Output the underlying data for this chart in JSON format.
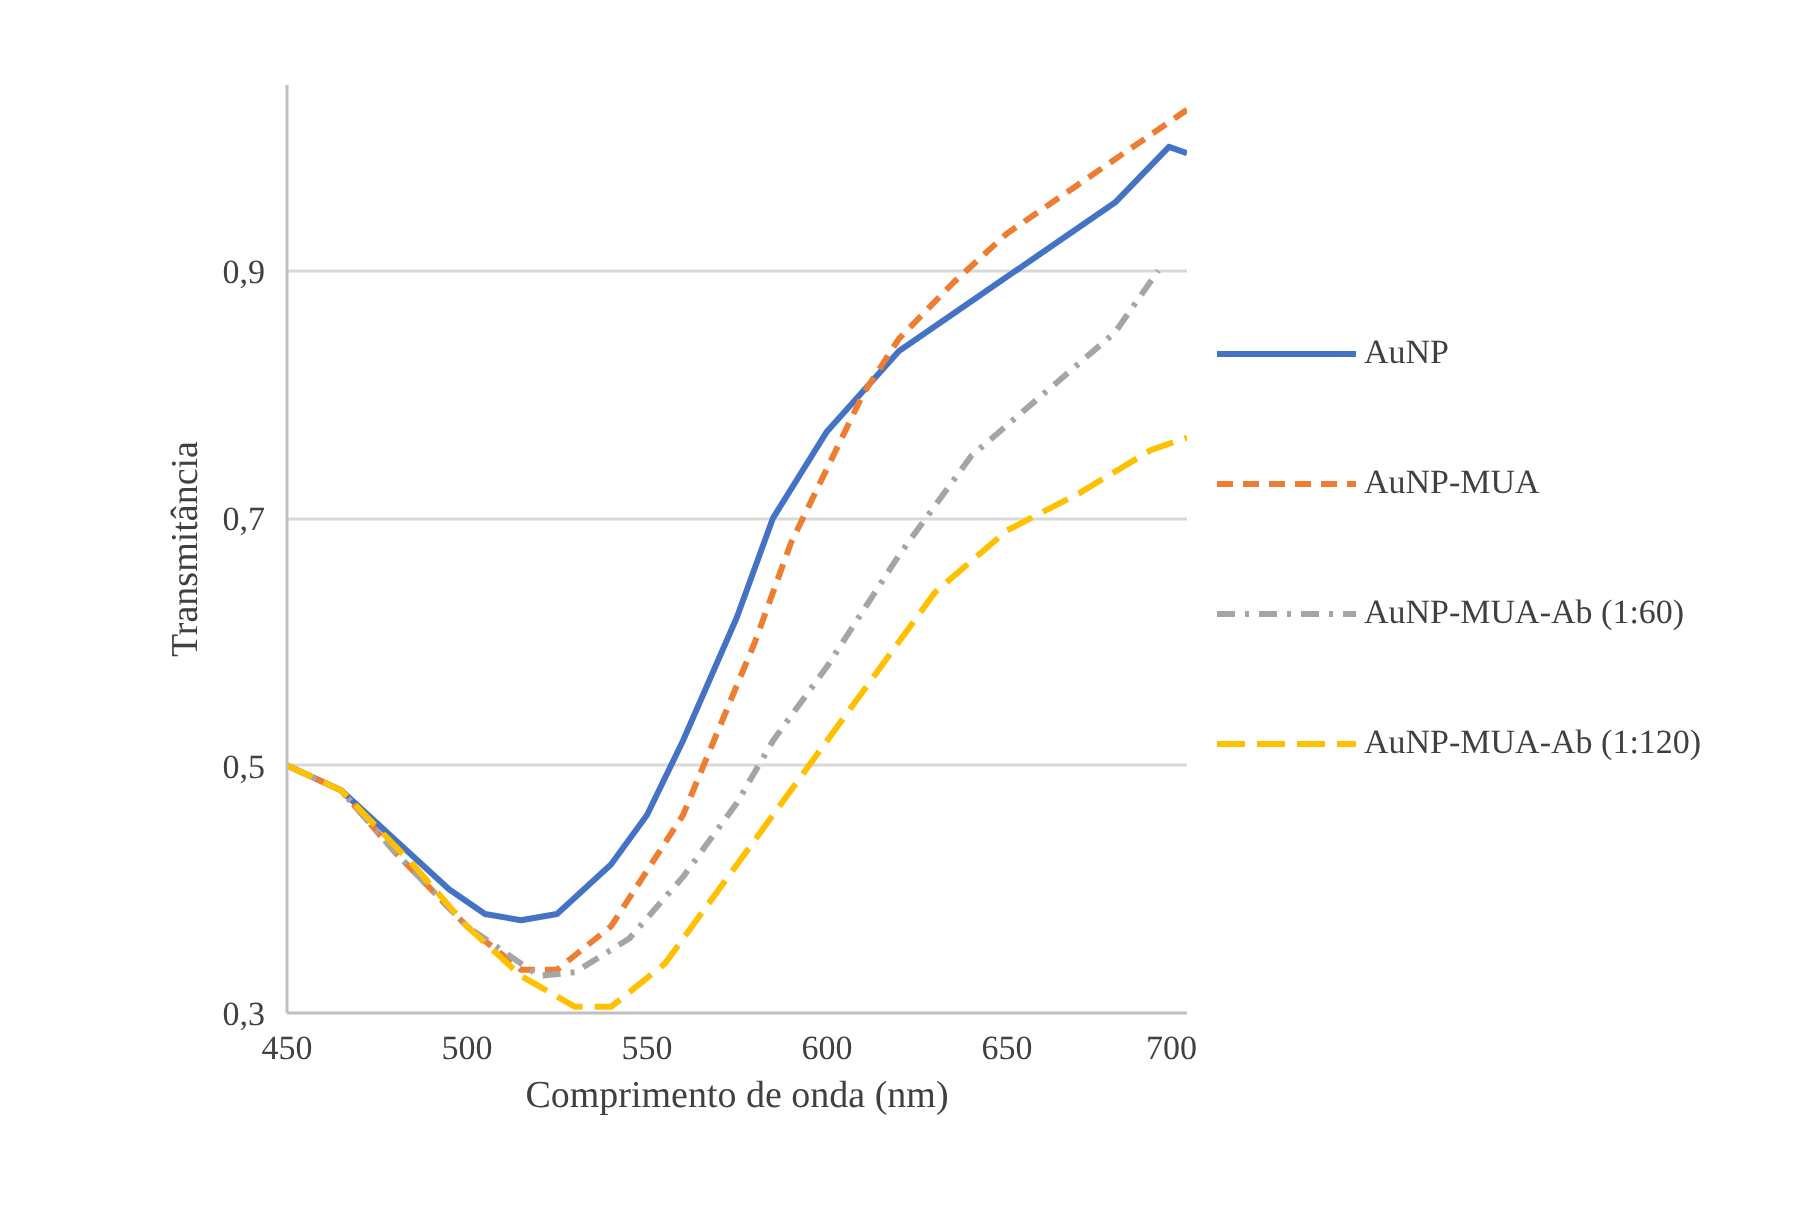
{
  "chart_data": {
    "type": "line",
    "xlabel": "Comprimento de onda (nm)",
    "ylabel": "Transmitância",
    "xlim": [
      450,
      700
    ],
    "xticks": [
      450,
      500,
      550,
      600,
      650,
      700
    ],
    "ylim": [
      0.3,
      1.05
    ],
    "yticks": [
      {
        "value": 0.3,
        "label": "0,3"
      },
      {
        "value": 0.5,
        "label": "0,5"
      },
      {
        "value": 0.7,
        "label": "0,7"
      },
      {
        "value": 0.9,
        "label": "0,9"
      }
    ],
    "grid": "y",
    "legend": "right",
    "marker": "none",
    "series": [
      {
        "name": "AuNP",
        "color": "#4472c4",
        "line_style": "solid",
        "x": [
          450,
          465,
          480,
          495,
          505,
          515,
          525,
          540,
          550,
          560,
          575,
          585,
          600,
          620,
          640,
          660,
          680,
          695,
          700
        ],
        "values": [
          0.5,
          0.48,
          0.44,
          0.4,
          0.38,
          0.375,
          0.38,
          0.42,
          0.46,
          0.52,
          0.62,
          0.7,
          0.77,
          0.835,
          0.875,
          0.915,
          0.955,
          1.0,
          0.995
        ]
      },
      {
        "name": "AuNP-MUA",
        "color": "#ed7d31",
        "line_style": "dashed",
        "x": [
          450,
          465,
          480,
          500,
          515,
          525,
          540,
          560,
          570,
          580,
          590,
          600,
          610,
          620,
          635,
          650,
          670,
          690,
          700
        ],
        "values": [
          0.5,
          0.48,
          0.43,
          0.37,
          0.335,
          0.335,
          0.37,
          0.46,
          0.53,
          0.6,
          0.68,
          0.74,
          0.8,
          0.845,
          0.89,
          0.93,
          0.97,
          1.01,
          1.03
        ]
      },
      {
        "name": "AuNP-MUA-Ab (1:60)",
        "color": "#a5a5a5",
        "line_style": "dashdot",
        "x": [
          450,
          465,
          480,
          500,
          520,
          530,
          545,
          560,
          575,
          585,
          600,
          620,
          640,
          660,
          680,
          692
        ],
        "values": [
          0.5,
          0.48,
          0.43,
          0.37,
          0.33,
          0.333,
          0.36,
          0.41,
          0.47,
          0.52,
          0.58,
          0.67,
          0.75,
          0.8,
          0.85,
          0.9
        ]
      },
      {
        "name": "AuNP-MUA-Ab (1:120)",
        "color": "#ffc000",
        "line_style": "longdash",
        "x": [
          450,
          465,
          485,
          500,
          515,
          530,
          540,
          555,
          570,
          585,
          600,
          615,
          630,
          650,
          670,
          690,
          700
        ],
        "values": [
          0.5,
          0.48,
          0.42,
          0.37,
          0.33,
          0.305,
          0.305,
          0.34,
          0.4,
          0.46,
          0.52,
          0.58,
          0.64,
          0.69,
          0.72,
          0.755,
          0.765
        ]
      }
    ]
  }
}
